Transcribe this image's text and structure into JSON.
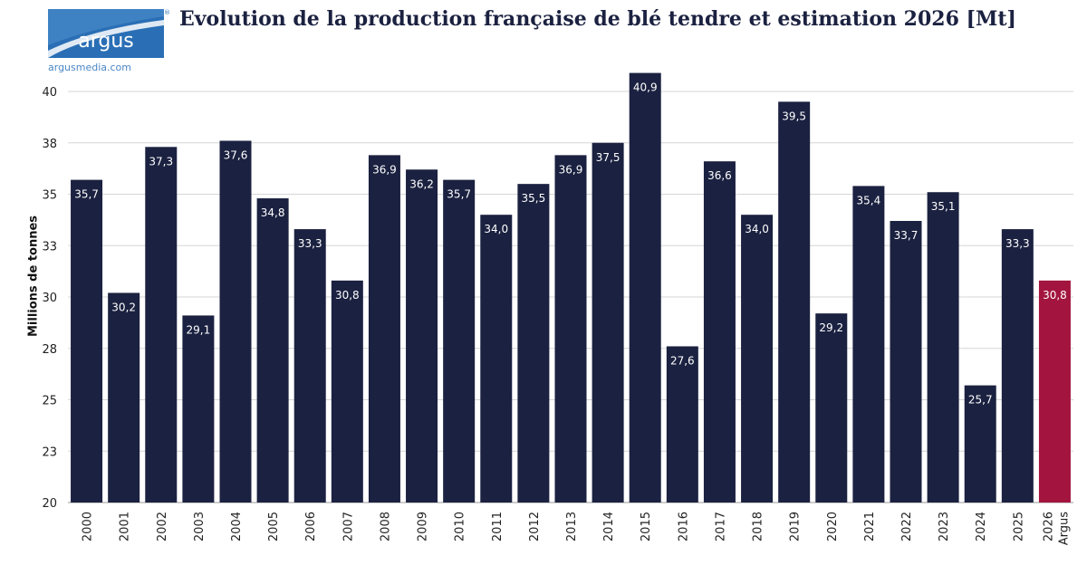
{
  "header": {
    "logo_name": "argus",
    "logo_url": "argusmedia.com",
    "registered_mark": "®",
    "title": "Evolution de la production française de blé tendre et estimation 2026 [Mt]"
  },
  "colors": {
    "bar": "#1b2140",
    "estimate_bar": "#a3153e",
    "logo_bg": "#2a6fb5",
    "grid": "#d6d6d6"
  },
  "chart_data": {
    "type": "bar",
    "title": "Evolution de la production française de blé tendre et estimation 2026 [Mt]",
    "xlabel": "",
    "ylabel": "Millions de tonnes",
    "ylim": [
      20,
      41.5
    ],
    "yticks": [
      20,
      22.5,
      25,
      27.5,
      30,
      32.5,
      35,
      37.5,
      40
    ],
    "ytick_labels": [
      "20",
      "23",
      "25",
      "28",
      "30",
      "33",
      "35",
      "38",
      "40"
    ],
    "grid": true,
    "categories": [
      "2000",
      "2001",
      "2002",
      "2003",
      "2004",
      "2005",
      "2006",
      "2007",
      "2008",
      "2009",
      "2010",
      "2011",
      "2012",
      "2013",
      "2014",
      "2015",
      "2016",
      "2017",
      "2018",
      "2019",
      "2020",
      "2021",
      "2022",
      "2023",
      "2024",
      "2025",
      "2026 Argus"
    ],
    "values": [
      35.7,
      30.2,
      37.3,
      29.1,
      37.6,
      34.8,
      33.3,
      30.8,
      36.9,
      36.2,
      35.7,
      34.0,
      35.5,
      36.9,
      37.5,
      40.9,
      27.6,
      36.6,
      34.0,
      39.5,
      29.2,
      35.4,
      33.7,
      35.1,
      25.7,
      33.3,
      30.8
    ],
    "value_labels": [
      "35,7",
      "30,2",
      "37,3",
      "29,1",
      "37,6",
      "34,8",
      "33,3",
      "30,8",
      "36,9",
      "36,2",
      "35,7",
      "34,0",
      "35,5",
      "36,9",
      "37,5",
      "40,9",
      "27,6",
      "36,6",
      "34,0",
      "39,5",
      "29,2",
      "35,4",
      "33,7",
      "35,1",
      "25,7",
      "33,3",
      "30,8"
    ],
    "highlight_index": 26
  }
}
